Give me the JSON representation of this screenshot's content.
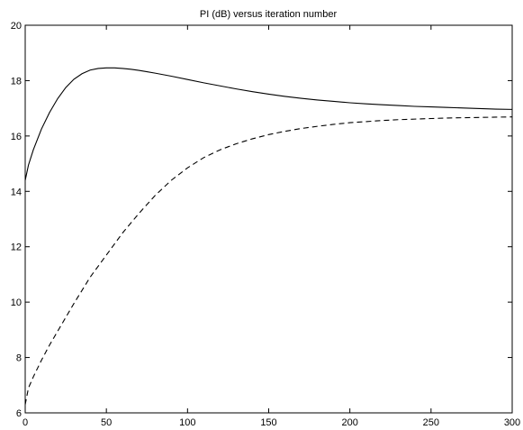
{
  "chart_data": {
    "type": "line",
    "title": "PI (dB) versus iteration number",
    "xlabel": "",
    "ylabel": "",
    "xlim": [
      0,
      300
    ],
    "ylim": [
      6,
      20
    ],
    "xticks": [
      0,
      50,
      100,
      150,
      200,
      250,
      300
    ],
    "yticks": [
      6,
      8,
      10,
      12,
      14,
      16,
      18,
      20
    ],
    "grid": false,
    "series": [
      {
        "style": "solid",
        "color": "#000000",
        "x": [
          0,
          2,
          5,
          10,
          15,
          20,
          25,
          30,
          35,
          40,
          45,
          50,
          55,
          60,
          65,
          70,
          75,
          80,
          90,
          100,
          110,
          120,
          130,
          140,
          150,
          160,
          170,
          180,
          190,
          200,
          210,
          220,
          230,
          240,
          250,
          260,
          270,
          280,
          290,
          300
        ],
        "y": [
          14.4,
          14.95,
          15.5,
          16.25,
          16.85,
          17.35,
          17.75,
          18.05,
          18.25,
          18.38,
          18.44,
          18.46,
          18.46,
          18.44,
          18.41,
          18.37,
          18.32,
          18.27,
          18.16,
          18.04,
          17.92,
          17.81,
          17.7,
          17.6,
          17.51,
          17.43,
          17.36,
          17.3,
          17.25,
          17.2,
          17.16,
          17.13,
          17.1,
          17.07,
          17.05,
          17.03,
          17.01,
          16.99,
          16.97,
          16.96
        ]
      },
      {
        "style": "dashed",
        "color": "#000000",
        "x": [
          0,
          2,
          5,
          10,
          15,
          20,
          25,
          30,
          40,
          50,
          60,
          70,
          80,
          90,
          100,
          110,
          120,
          130,
          140,
          150,
          160,
          170,
          180,
          190,
          200,
          210,
          220,
          230,
          240,
          250,
          260,
          270,
          280,
          290,
          300
        ],
        "y": [
          6.3,
          6.9,
          7.3,
          7.9,
          8.45,
          8.95,
          9.45,
          9.95,
          10.9,
          11.7,
          12.5,
          13.2,
          13.85,
          14.4,
          14.85,
          15.22,
          15.5,
          15.72,
          15.9,
          16.05,
          16.17,
          16.27,
          16.35,
          16.42,
          16.48,
          16.52,
          16.56,
          16.59,
          16.61,
          16.63,
          16.65,
          16.66,
          16.67,
          16.68,
          16.69
        ]
      }
    ]
  }
}
